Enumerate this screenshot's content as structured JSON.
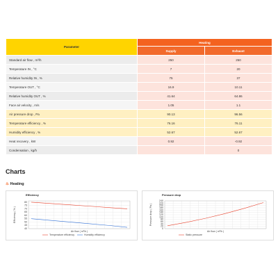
{
  "table": {
    "headers": {
      "parameter": "Parameter",
      "group": "Heating",
      "columns": [
        "Supply",
        "Exhaust"
      ]
    },
    "rows": [
      [
        "Standard air flow , m³/h",
        "250",
        "250"
      ],
      [
        "Temperature IN , °C",
        "7",
        "20"
      ],
      [
        "Relative humidity IN , %",
        "75",
        "37"
      ],
      [
        "Temperature OUT , °C",
        "16.9",
        "10.11"
      ],
      [
        "Relative humidity OUT , %",
        "41.64",
        "64.86"
      ],
      [
        "Face air velocity , m/s",
        "1.05",
        "1.1"
      ],
      [
        "Air pressure drop , Pa",
        "90.13",
        "96.56"
      ],
      [
        "Temperature efficiency , %",
        "76.16",
        "76.11"
      ],
      [
        "Humidity efficiency , %",
        "52.67",
        "52.67"
      ],
      [
        "Heat recovery , kW",
        "0.92",
        "-0.92"
      ],
      [
        "Condensation , kg/h",
        null,
        "0"
      ]
    ]
  },
  "section": {
    "title": "Charts",
    "subtitle": "Heating"
  },
  "chart_data": [
    {
      "type": "line",
      "title": "Efficiency",
      "y_label": "Efficiency ( % )",
      "x_label": "Air flow ( m³/h )",
      "ylim": [
        40,
        82
      ],
      "yticks": [
        40,
        45,
        50,
        55,
        60,
        65,
        70,
        75,
        80
      ],
      "grid": true,
      "series": [
        {
          "name": "Temperature efficiency",
          "color": "#e8412c",
          "values": [
            80,
            78,
            76,
            74,
            72,
            70
          ]
        },
        {
          "name": "Humidity efficiency",
          "color": "#2f6fd6",
          "values": [
            55,
            52.5,
            50,
            47.5,
            45,
            42
          ]
        }
      ]
    },
    {
      "type": "line",
      "title": "Pressure drop",
      "y_label": "Pressure drop ( Pa )",
      "x_label": "Air flow ( m³/h )",
      "ylim": [
        0,
        240
      ],
      "yticks": [
        0,
        20,
        40,
        60,
        80,
        100,
        120,
        140,
        160,
        180,
        200,
        220,
        240
      ],
      "grid": true,
      "series": [
        {
          "name": "Static pressure",
          "color": "#e8412c",
          "values": [
            25,
            55,
            90,
            130,
            175,
            225
          ]
        }
      ]
    }
  ]
}
